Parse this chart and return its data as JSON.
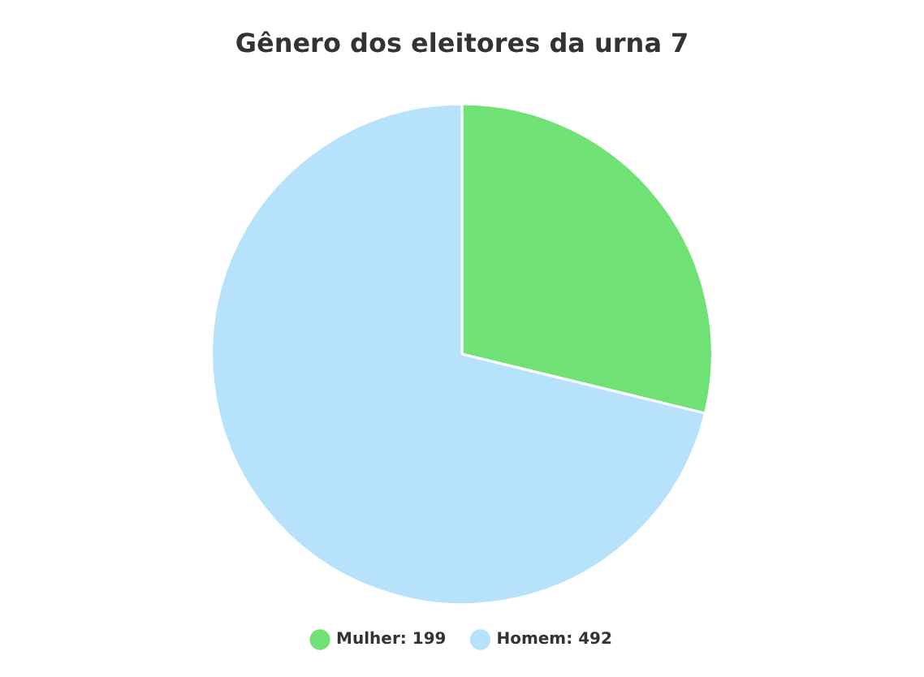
{
  "chart_data": {
    "type": "pie",
    "title": "Gênero dos eleitores da urna 7",
    "categories": [
      "Mulher: 199",
      "Homem: 492"
    ],
    "values": [
      199,
      492
    ],
    "colors": [
      "#70e174",
      "#b6e3fb"
    ],
    "legend": "bottom"
  }
}
